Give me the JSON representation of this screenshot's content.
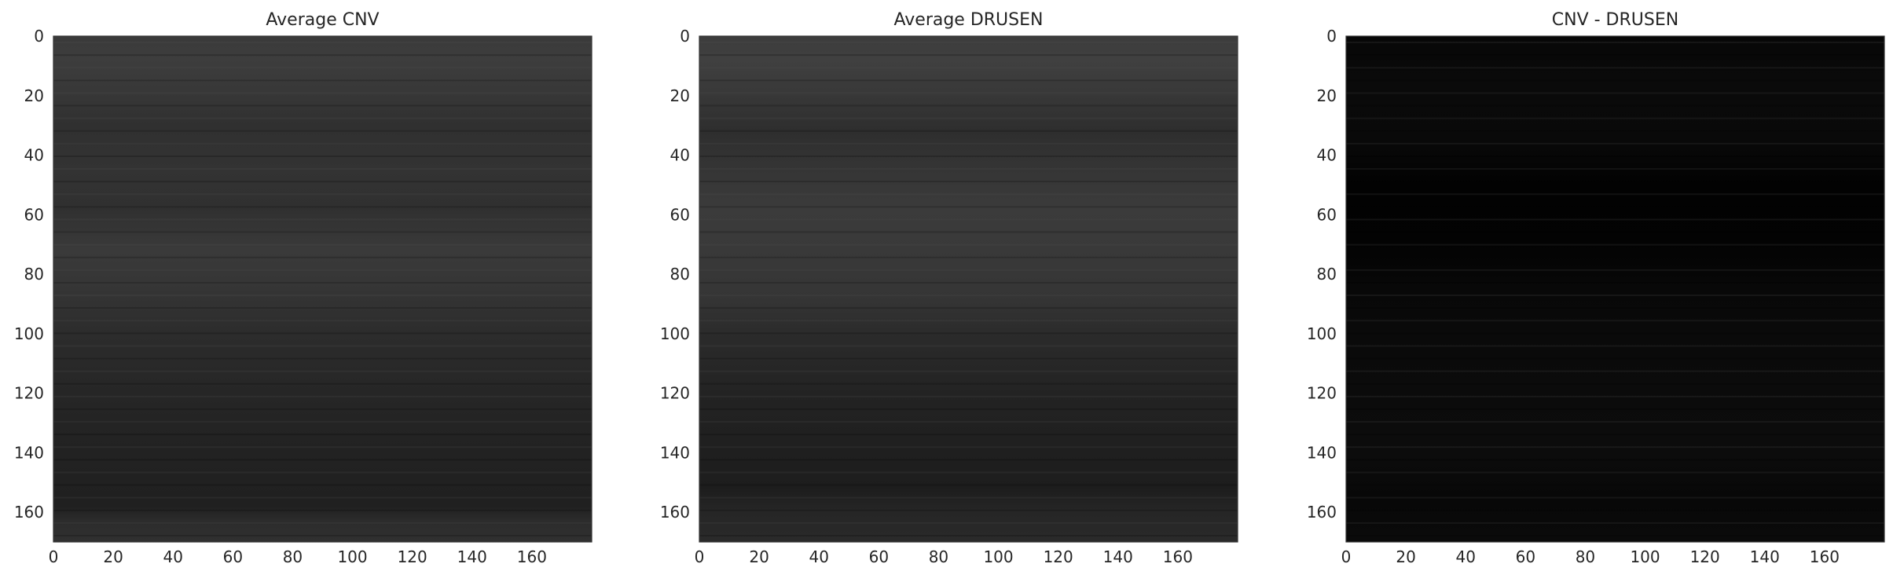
{
  "chart_data": [
    {
      "type": "heatmap",
      "title": "Average CNV",
      "xlim": [
        0,
        180
      ],
      "ylim": [
        170,
        0
      ],
      "xticks": [
        0,
        20,
        40,
        60,
        80,
        100,
        120,
        140,
        160
      ],
      "yticks": [
        0,
        20,
        40,
        60,
        80,
        100,
        120,
        140,
        160
      ],
      "colormap": "gray",
      "row_profile": [
        {
          "y": 0,
          "gray": "#3a3a3a"
        },
        {
          "y": 8,
          "gray": "#3d3d3d"
        },
        {
          "y": 18,
          "gray": "#383838"
        },
        {
          "y": 30,
          "gray": "#303030"
        },
        {
          "y": 45,
          "gray": "#333333"
        },
        {
          "y": 58,
          "gray": "#303030"
        },
        {
          "y": 72,
          "gray": "#3a3a3a"
        },
        {
          "y": 85,
          "gray": "#353535"
        },
        {
          "y": 100,
          "gray": "#2c2c2c"
        },
        {
          "y": 120,
          "gray": "#262626"
        },
        {
          "y": 140,
          "gray": "#222222"
        },
        {
          "y": 158,
          "gray": "#202020"
        },
        {
          "y": 163,
          "gray": "#2c2c2c"
        },
        {
          "y": 170,
          "gray": "#303030"
        }
      ]
    },
    {
      "type": "heatmap",
      "title": "Average DRUSEN",
      "xlim": [
        0,
        180
      ],
      "ylim": [
        170,
        0
      ],
      "xticks": [
        0,
        20,
        40,
        60,
        80,
        100,
        120,
        140,
        160
      ],
      "yticks": [
        0,
        20,
        40,
        60,
        80,
        100,
        120,
        140,
        160
      ],
      "colormap": "gray",
      "row_profile": [
        {
          "y": 0,
          "gray": "#3c3c3c"
        },
        {
          "y": 8,
          "gray": "#404040"
        },
        {
          "y": 18,
          "gray": "#393939"
        },
        {
          "y": 32,
          "gray": "#2e2e2e"
        },
        {
          "y": 45,
          "gray": "#353535"
        },
        {
          "y": 58,
          "gray": "#3b3b3b"
        },
        {
          "y": 72,
          "gray": "#393939"
        },
        {
          "y": 88,
          "gray": "#353535"
        },
        {
          "y": 100,
          "gray": "#2b2b2b"
        },
        {
          "y": 120,
          "gray": "#232323"
        },
        {
          "y": 140,
          "gray": "#1f1f1f"
        },
        {
          "y": 152,
          "gray": "#1d1d1d"
        },
        {
          "y": 160,
          "gray": "#262626"
        },
        {
          "y": 170,
          "gray": "#2a2a2a"
        }
      ]
    },
    {
      "type": "heatmap",
      "title": "CNV - DRUSEN",
      "xlim": [
        0,
        180
      ],
      "ylim": [
        170,
        0
      ],
      "xticks": [
        0,
        20,
        40,
        60,
        80,
        100,
        120,
        140,
        160
      ],
      "yticks": [
        0,
        20,
        40,
        60,
        80,
        100,
        120,
        140,
        160
      ],
      "colormap": "gray",
      "row_profile": [
        {
          "y": 0,
          "gray": "#070707"
        },
        {
          "y": 15,
          "gray": "#0a0a0a"
        },
        {
          "y": 35,
          "gray": "#090909"
        },
        {
          "y": 50,
          "gray": "#020202"
        },
        {
          "y": 70,
          "gray": "#030303"
        },
        {
          "y": 85,
          "gray": "#080808"
        },
        {
          "y": 100,
          "gray": "#0a0a0a"
        },
        {
          "y": 120,
          "gray": "#0b0b0b"
        },
        {
          "y": 140,
          "gray": "#0c0c0c"
        },
        {
          "y": 155,
          "gray": "#080808"
        },
        {
          "y": 170,
          "gray": "#0a0a0a"
        }
      ]
    }
  ]
}
